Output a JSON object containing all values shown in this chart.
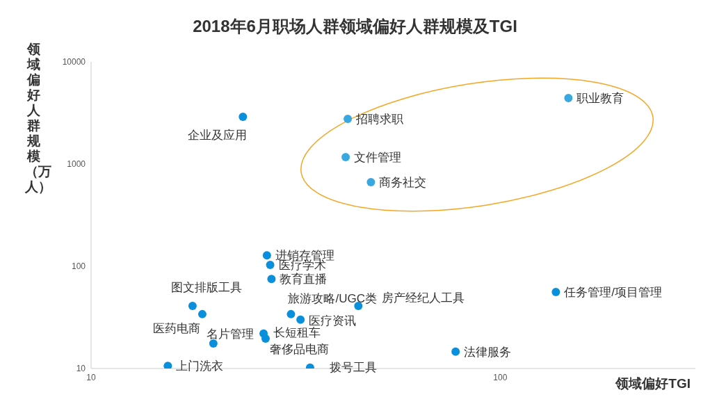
{
  "chart_data": {
    "type": "scatter",
    "title": "2018年6月职场人群领域偏好人群规模及TGI",
    "xlabel": "领域偏好TGI",
    "ylabel": "领域偏好人群规模（万人）",
    "log": "xy",
    "xlim": [
      10,
      300
    ],
    "xticks": [
      10,
      100
    ],
    "ylim": [
      10,
      10000
    ],
    "yticks": [
      10,
      100,
      1000,
      10000
    ],
    "marker": "circle",
    "series": [
      {
        "color": "#3aa8e0",
        "x": [
          146.8,
          42.4,
          41.9,
          48.3
        ],
        "values": [
          4430,
          2770,
          1170,
          665
        ],
        "value_labels": [
          "职业教育",
          "招聘求职",
          "文件管理",
          "商务社交"
        ]
      },
      {
        "color": "#0a8fdc",
        "x": [
          23.5,
          26.9,
          27.4,
          27.6,
          17.7,
          18.7,
          30.8,
          45,
          32.5,
          26.4,
          26.7,
          19.9,
          15.4,
          34.3,
          77.8,
          136.8
        ],
        "values": [
          2900,
          128,
          103,
          75,
          41,
          34,
          34,
          41,
          30,
          22,
          19.6,
          17.6,
          10.6,
          10.2,
          14.6,
          56
        ],
        "value_labels": [
          "企业及应用",
          "进销存管理",
          "医疗学术",
          "教育直播",
          "图文排版工具",
          "医药电商",
          "旅游攻略/UGC类",
          "房产经纪人工具",
          "医疗资讯",
          "长短租车",
          "奢侈品电商",
          "名片管理",
          "上门洗衣",
          "拨号工具",
          "法律服务",
          "任务管理/项目管理"
        ]
      }
    ]
  }
}
